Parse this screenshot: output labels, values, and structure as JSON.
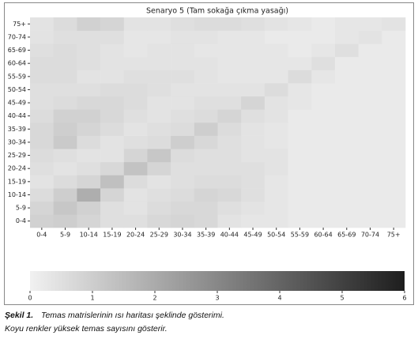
{
  "chart_data": {
    "type": "heatmap",
    "title": "Senaryo 5 (Tam sokağa çıkma yasağı)",
    "x_categories": [
      "0-4",
      "5-9",
      "10-14",
      "15-19",
      "20-24",
      "25-29",
      "30-34",
      "35-39",
      "40-44",
      "45-49",
      "50-54",
      "55-59",
      "60-64",
      "65-69",
      "70-74",
      "75+"
    ],
    "y_categories": [
      "0-4",
      "5-9",
      "10-14",
      "15-19",
      "20-24",
      "25-29",
      "30-34",
      "35-39",
      "40-44",
      "45-49",
      "50-54",
      "55-59",
      "60-64",
      "65-69",
      "70-74",
      "75+"
    ],
    "values": [
      [
        0.9,
        1.0,
        0.8,
        0.5,
        0.5,
        0.7,
        0.8,
        0.7,
        0.4,
        0.3,
        0.3,
        0.2,
        0.2,
        0.2,
        0.2,
        0.2
      ],
      [
        0.8,
        1.2,
        0.9,
        0.5,
        0.4,
        0.6,
        0.7,
        0.7,
        0.5,
        0.4,
        0.3,
        0.2,
        0.2,
        0.2,
        0.2,
        0.2
      ],
      [
        0.6,
        1.0,
        1.9,
        0.8,
        0.4,
        0.5,
        0.6,
        0.8,
        0.7,
        0.5,
        0.3,
        0.2,
        0.2,
        0.2,
        0.2,
        0.2
      ],
      [
        0.4,
        0.6,
        0.8,
        1.4,
        0.6,
        0.4,
        0.5,
        0.6,
        0.6,
        0.5,
        0.3,
        0.2,
        0.2,
        0.2,
        0.2,
        0.2
      ],
      [
        0.5,
        0.4,
        0.5,
        0.7,
        1.3,
        0.8,
        0.5,
        0.5,
        0.5,
        0.5,
        0.4,
        0.2,
        0.2,
        0.2,
        0.2,
        0.2
      ],
      [
        0.6,
        0.5,
        0.4,
        0.4,
        0.8,
        1.2,
        0.6,
        0.5,
        0.5,
        0.4,
        0.4,
        0.2,
        0.2,
        0.2,
        0.2,
        0.2
      ],
      [
        0.7,
        1.1,
        0.6,
        0.4,
        0.5,
        0.6,
        1.0,
        0.7,
        0.5,
        0.4,
        0.3,
        0.2,
        0.2,
        0.2,
        0.2,
        0.2
      ],
      [
        0.7,
        1.0,
        0.8,
        0.6,
        0.4,
        0.5,
        0.6,
        1.0,
        0.6,
        0.4,
        0.3,
        0.2,
        0.2,
        0.2,
        0.2,
        0.2
      ],
      [
        0.6,
        0.9,
        0.9,
        0.7,
        0.5,
        0.4,
        0.5,
        0.6,
        0.8,
        0.5,
        0.4,
        0.2,
        0.2,
        0.2,
        0.2,
        0.2
      ],
      [
        0.5,
        0.6,
        0.7,
        0.7,
        0.6,
        0.4,
        0.4,
        0.5,
        0.5,
        0.8,
        0.4,
        0.3,
        0.2,
        0.2,
        0.2,
        0.2
      ],
      [
        0.5,
        0.5,
        0.5,
        0.6,
        0.6,
        0.5,
        0.4,
        0.4,
        0.4,
        0.4,
        0.6,
        0.3,
        0.2,
        0.2,
        0.2,
        0.2
      ],
      [
        0.6,
        0.6,
        0.4,
        0.4,
        0.5,
        0.5,
        0.5,
        0.4,
        0.3,
        0.3,
        0.3,
        0.6,
        0.3,
        0.2,
        0.2,
        0.2
      ],
      [
        0.6,
        0.6,
        0.5,
        0.4,
        0.4,
        0.4,
        0.4,
        0.4,
        0.3,
        0.3,
        0.3,
        0.3,
        0.5,
        0.2,
        0.2,
        0.2
      ],
      [
        0.5,
        0.6,
        0.5,
        0.4,
        0.3,
        0.4,
        0.4,
        0.3,
        0.3,
        0.3,
        0.3,
        0.2,
        0.3,
        0.5,
        0.2,
        0.2
      ],
      [
        0.4,
        0.5,
        0.5,
        0.5,
        0.3,
        0.3,
        0.4,
        0.4,
        0.3,
        0.3,
        0.2,
        0.2,
        0.2,
        0.3,
        0.4,
        0.2
      ],
      [
        0.4,
        0.6,
        0.9,
        0.8,
        0.4,
        0.4,
        0.5,
        0.6,
        0.6,
        0.5,
        0.4,
        0.3,
        0.2,
        0.3,
        0.3,
        0.4
      ]
    ],
    "colormap": [
      "#f1f1f1",
      "#1e1e1e"
    ],
    "colorbar": {
      "lim": [
        0,
        6
      ],
      "ticks": [
        0,
        1,
        2,
        3,
        4,
        5,
        6
      ]
    }
  },
  "caption": {
    "label": "Şekil 1.",
    "lines": [
      "Temas matrislerinin ısı haritası şeklinde gösterimi.",
      "Koyu renkler yüksek temas sayısını gösterir."
    ]
  }
}
